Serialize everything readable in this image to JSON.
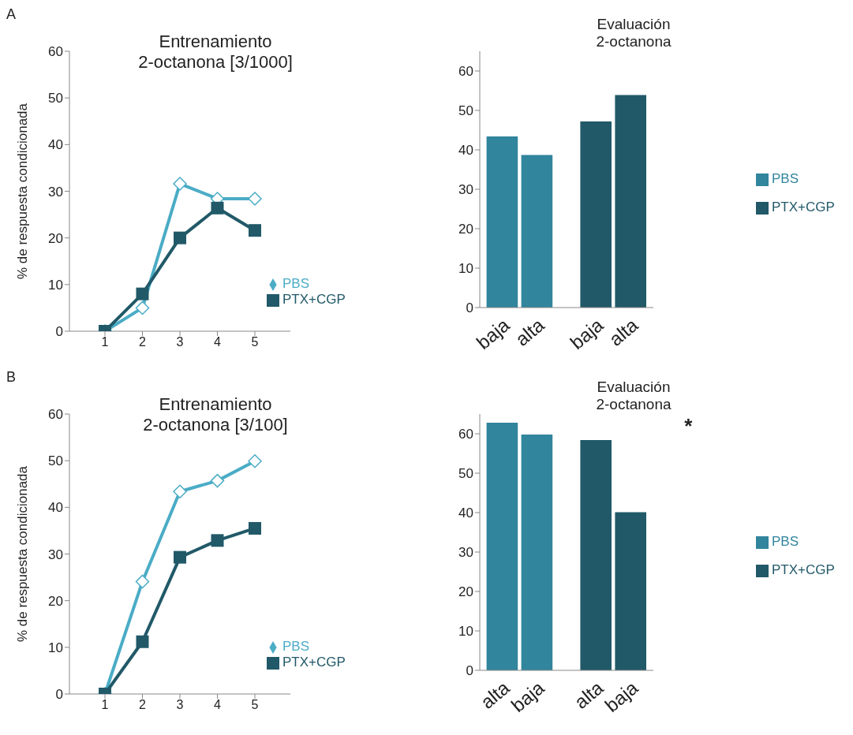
{
  "chart_data": [
    {
      "type": "line",
      "title": "Entrenamiento",
      "subtitle": "2-octanona [3/1000]",
      "ylabel": "% de respuesta condicionada",
      "categories": [
        "1",
        "2",
        "3",
        "4",
        "5"
      ],
      "ylim": [
        0,
        60
      ],
      "yticks": [
        0,
        10,
        20,
        30,
        40,
        50,
        60
      ],
      "legend": "bottom right",
      "annotations": [
        "A"
      ],
      "series": [
        {
          "name": "PBS",
          "color": "#4bacc6",
          "marker": "diamond",
          "values": [
            0,
            5,
            31.6,
            28.4,
            28.4
          ]
        },
        {
          "name": "PTX+CGP",
          "color": "#215968",
          "marker": "square",
          "values": [
            0,
            8,
            20,
            26.4,
            21.6
          ]
        }
      ]
    },
    {
      "type": "bar",
      "title": "Evaluación",
      "subtitle": "2-octanona",
      "categories": [
        "baja",
        "alta",
        "baja",
        "alta"
      ],
      "ylim": [
        0,
        65
      ],
      "yticks": [
        0,
        10,
        20,
        30,
        40,
        50,
        60
      ],
      "legend": "right",
      "stacked": true,
      "series": [
        {
          "name": "PBS",
          "color": "#31859c",
          "values": [
            43.4,
            38.7,
            null,
            null
          ]
        },
        {
          "name": "PTX+CGP",
          "color": "#215968",
          "values": [
            null,
            null,
            47.2,
            53.9
          ]
        }
      ]
    },
    {
      "type": "line",
      "title": "Entrenamiento",
      "subtitle": "2-octanona [3/100]",
      "ylabel": "% de respuesta condicionada",
      "categories": [
        "1",
        "2",
        "3",
        "4",
        "5"
      ],
      "ylim": [
        0,
        60
      ],
      "yticks": [
        0,
        10,
        20,
        30,
        40,
        50,
        60
      ],
      "legend": "bottom right",
      "annotations": [
        "B"
      ],
      "series": [
        {
          "name": "PBS",
          "color": "#4bacc6",
          "marker": "diamond",
          "values": [
            0,
            24.1,
            43.4,
            45.7,
            49.9
          ]
        },
        {
          "name": "PTX+CGP",
          "color": "#215968",
          "marker": "square",
          "values": [
            0,
            11.2,
            29.3,
            32.9,
            35.5
          ]
        }
      ]
    },
    {
      "type": "bar",
      "title": "Evaluación",
      "subtitle": "2-octanona",
      "categories": [
        "alta",
        "baja",
        "alta",
        "baja"
      ],
      "ylim": [
        0,
        65
      ],
      "yticks": [
        0,
        10,
        20,
        30,
        40,
        50,
        60
      ],
      "legend": "right",
      "stacked": true,
      "annotations": [
        "*"
      ],
      "series": [
        {
          "name": "PBS",
          "color": "#31859c",
          "values": [
            62.8,
            59.8,
            null,
            null
          ]
        },
        {
          "name": "PTX+CGP",
          "color": "#215968",
          "values": [
            null,
            null,
            58.4,
            40.1
          ]
        }
      ]
    }
  ]
}
